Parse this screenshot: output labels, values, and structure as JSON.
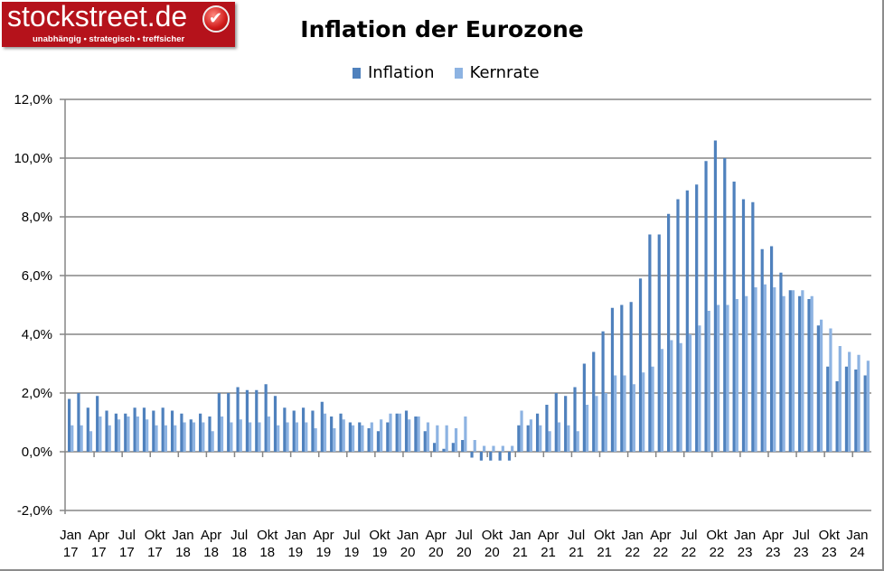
{
  "logo": {
    "name": "stockstreet.de",
    "tagline": "unabhängig • strategisch • treffsicher"
  },
  "chart_data": {
    "type": "bar",
    "title": "Inflation der Eurozone",
    "ylim": [
      -2,
      12
    ],
    "yticks": [
      -2,
      0,
      2,
      4,
      6,
      8,
      10,
      12
    ],
    "ytick_labels": [
      "-2,0%",
      "0,0%",
      "2,0%",
      "4,0%",
      "6,0%",
      "8,0%",
      "10,0%",
      "12,0%"
    ],
    "grid": true,
    "legend": "top",
    "colors": {
      "Inflation": "#4f81bd",
      "Kernrate": "#8db3e2"
    },
    "categories": [
      "Jan 17",
      "Feb 17",
      "Mar 17",
      "Apr 17",
      "May 17",
      "Jun 17",
      "Jul 17",
      "Aug 17",
      "Sep 17",
      "Okt 17",
      "Nov 17",
      "Dec 17",
      "Jan 18",
      "Feb 18",
      "Mar 18",
      "Apr 18",
      "May 18",
      "Jun 18",
      "Jul 18",
      "Aug 18",
      "Sep 18",
      "Okt 18",
      "Nov 18",
      "Dec 18",
      "Jan 19",
      "Feb 19",
      "Mar 19",
      "Apr 19",
      "May 19",
      "Jun 19",
      "Jul 19",
      "Aug 19",
      "Sep 19",
      "Okt 19",
      "Nov 19",
      "Dec 19",
      "Jan 20",
      "Feb 20",
      "Mar 20",
      "Apr 20",
      "May 20",
      "Jun 20",
      "Jul 20",
      "Aug 20",
      "Sep 20",
      "Okt 20",
      "Nov 20",
      "Dec 20",
      "Jan 21",
      "Feb 21",
      "Mar 21",
      "Apr 21",
      "May 21",
      "Jun 21",
      "Jul 21",
      "Aug 21",
      "Sep 21",
      "Okt 21",
      "Nov 21",
      "Dec 21",
      "Jan 22",
      "Feb 22",
      "Mar 22",
      "Apr 22",
      "May 22",
      "Jun 22",
      "Jul 22",
      "Aug 22",
      "Sep 22",
      "Okt 22",
      "Nov 22",
      "Dec 22",
      "Jan 23",
      "Feb 23",
      "Mar 23",
      "Apr 23",
      "May 23",
      "Jun 23",
      "Jul 23",
      "Aug 23",
      "Sep 23",
      "Okt 23",
      "Nov 23",
      "Dec 23",
      "Jan 24",
      "Feb 24"
    ],
    "xtick_labels": [
      [
        "Jan",
        "17"
      ],
      [
        "Apr",
        "17"
      ],
      [
        "Jul",
        "17"
      ],
      [
        "Okt",
        "17"
      ],
      [
        "Jan",
        "18"
      ],
      [
        "Apr",
        "18"
      ],
      [
        "Jul",
        "18"
      ],
      [
        "Okt",
        "18"
      ],
      [
        "Jan",
        "19"
      ],
      [
        "Apr",
        "19"
      ],
      [
        "Jul",
        "19"
      ],
      [
        "Okt",
        "19"
      ],
      [
        "Jan",
        "20"
      ],
      [
        "Apr",
        "20"
      ],
      [
        "Jul",
        "20"
      ],
      [
        "Okt",
        "20"
      ],
      [
        "Jan",
        "21"
      ],
      [
        "Apr",
        "21"
      ],
      [
        "Jul",
        "21"
      ],
      [
        "Okt",
        "21"
      ],
      [
        "Jan",
        "22"
      ],
      [
        "Apr",
        "22"
      ],
      [
        "Jul",
        "22"
      ],
      [
        "Okt",
        "22"
      ],
      [
        "Jan",
        "23"
      ],
      [
        "Apr",
        "23"
      ],
      [
        "Jul",
        "23"
      ],
      [
        "Okt",
        "23"
      ],
      [
        "Jan",
        "24"
      ]
    ],
    "series": [
      {
        "name": "Inflation",
        "values": [
          1.8,
          2.0,
          1.5,
          1.9,
          1.4,
          1.3,
          1.3,
          1.5,
          1.5,
          1.4,
          1.5,
          1.4,
          1.3,
          1.1,
          1.3,
          1.2,
          2.0,
          2.0,
          2.2,
          2.1,
          2.1,
          2.3,
          1.9,
          1.5,
          1.4,
          1.5,
          1.4,
          1.7,
          1.2,
          1.3,
          1.0,
          1.0,
          0.8,
          0.7,
          1.0,
          1.3,
          1.4,
          1.2,
          0.7,
          0.3,
          0.1,
          0.3,
          0.4,
          -0.2,
          -0.3,
          -0.3,
          -0.3,
          -0.3,
          0.9,
          0.9,
          1.3,
          1.6,
          2.0,
          1.9,
          2.2,
          3.0,
          3.4,
          4.1,
          4.9,
          5.0,
          5.1,
          5.9,
          7.4,
          7.4,
          8.1,
          8.6,
          8.9,
          9.1,
          9.9,
          10.6,
          10.0,
          9.2,
          8.6,
          8.5,
          6.9,
          7.0,
          6.1,
          5.5,
          5.3,
          5.2,
          4.3,
          2.9,
          2.4,
          2.9,
          2.8,
          2.6
        ]
      },
      {
        "name": "Kernrate",
        "values": [
          0.9,
          0.9,
          0.7,
          1.2,
          0.9,
          1.1,
          1.2,
          1.2,
          1.1,
          0.9,
          0.9,
          0.9,
          1.0,
          1.0,
          1.0,
          0.7,
          1.2,
          1.0,
          1.1,
          1.0,
          1.0,
          1.2,
          0.9,
          1.0,
          1.0,
          1.0,
          0.8,
          1.3,
          0.8,
          1.1,
          0.9,
          0.9,
          1.0,
          1.1,
          1.3,
          1.3,
          1.1,
          1.2,
          1.0,
          0.9,
          0.9,
          0.8,
          1.2,
          0.4,
          0.2,
          0.2,
          0.2,
          0.2,
          1.4,
          1.1,
          0.9,
          0.7,
          1.0,
          0.9,
          0.7,
          1.6,
          1.9,
          2.0,
          2.6,
          2.6,
          2.3,
          2.7,
          2.9,
          3.5,
          3.8,
          3.7,
          4.0,
          4.3,
          4.8,
          5.0,
          5.0,
          5.2,
          5.3,
          5.6,
          5.7,
          5.6,
          5.3,
          5.5,
          5.5,
          5.3,
          4.5,
          4.2,
          3.6,
          3.4,
          3.3,
          3.1
        ]
      }
    ]
  }
}
